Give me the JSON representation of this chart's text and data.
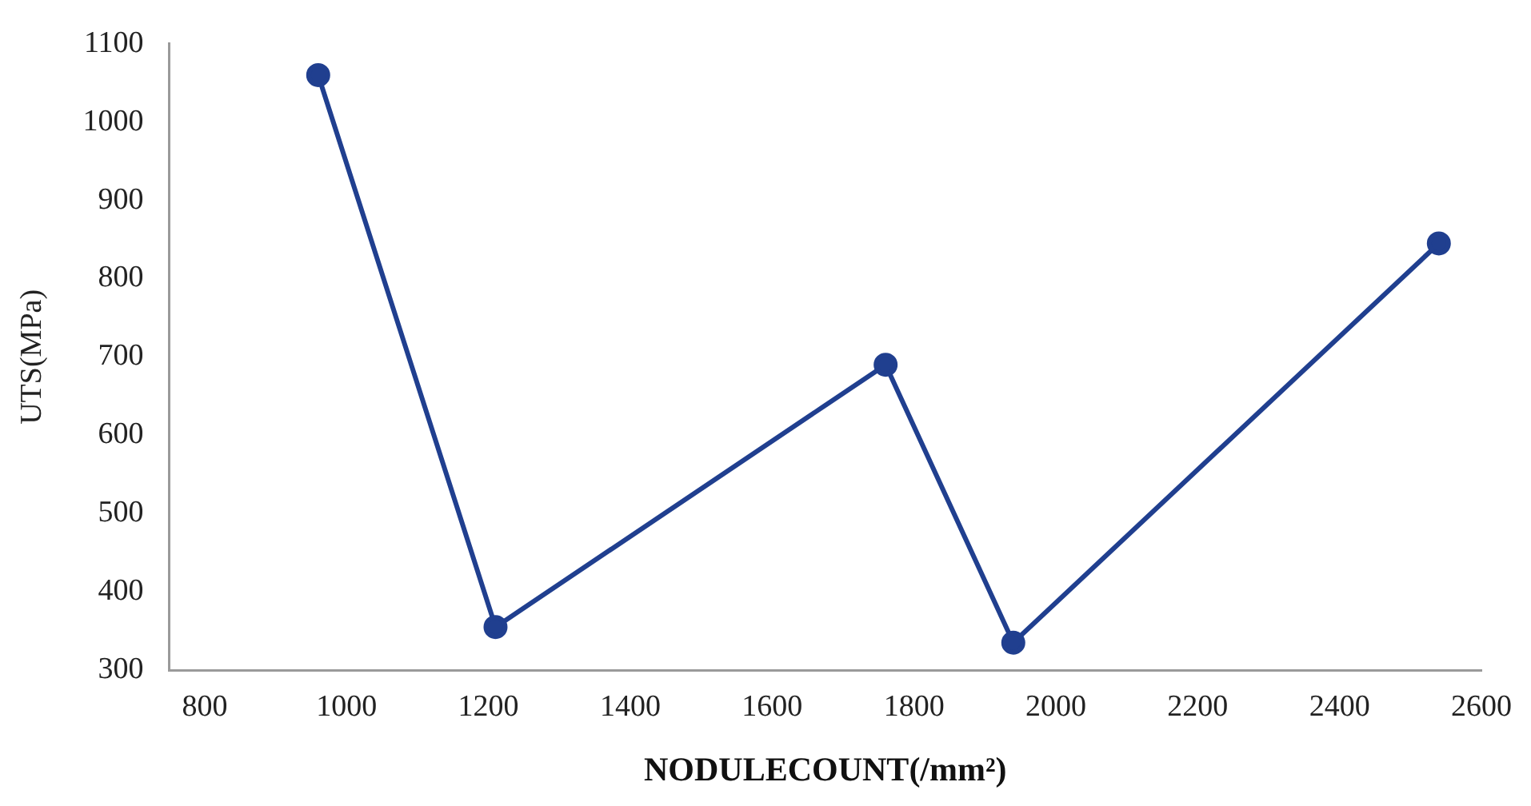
{
  "chart_data": {
    "type": "line",
    "xlabel": "NODULECOUNT(/mm²)",
    "ylabel": "UTS(MPa)",
    "x": [
      960,
      1210,
      1760,
      1940,
      2540
    ],
    "series": [
      {
        "color": "#203f8f",
        "values": [
          1060,
          355,
          690,
          335,
          845
        ]
      }
    ],
    "xlim": [
      750,
      2600
    ],
    "xticks": [
      800,
      1000,
      1200,
      1400,
      1600,
      1800,
      2000,
      2200,
      2400,
      2600
    ],
    "ylim": [
      300,
      1100
    ],
    "yticks": [
      300,
      400,
      500,
      600,
      700,
      800,
      900,
      1000,
      1100
    ],
    "grid": false,
    "legend": false,
    "marker": "circle",
    "line_style": "solid"
  }
}
